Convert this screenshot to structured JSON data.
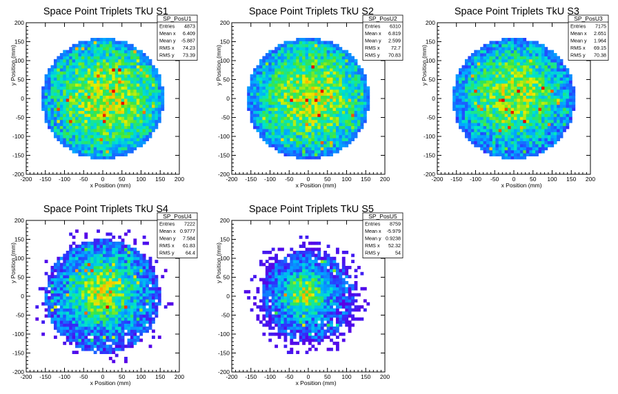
{
  "chart_data": [
    {
      "type": "heatmap",
      "title": "Space Point Triplets TkU S1",
      "xlabel": "x Position (mm)",
      "ylabel": "y Position (mm)",
      "xlim": [
        -200,
        200
      ],
      "ylim": [
        -200,
        200
      ],
      "x_ticks": [
        -200,
        -150,
        -100,
        -50,
        0,
        50,
        100,
        150,
        200
      ],
      "y_ticks": [
        -200,
        -150,
        -100,
        -50,
        0,
        50,
        100,
        150,
        200
      ],
      "stats": {
        "name": "SP_PosU1",
        "rows": [
          {
            "label": "Entries",
            "value": "4873"
          },
          {
            "label": "Mean x",
            "value": "6.409"
          },
          {
            "label": "Mean y",
            "value": "-5.887"
          },
          {
            "label": "RMS x",
            "value": "74.23"
          },
          {
            "label": "RMS y",
            "value": "73.39"
          }
        ]
      },
      "distribution": {
        "radius": 160,
        "peak": [
          10,
          0
        ],
        "spread": 120,
        "halo": 0
      }
    },
    {
      "type": "heatmap",
      "title": "Space Point Triplets TkU S2",
      "xlabel": "x Position (mm)",
      "ylabel": "y Position (mm)",
      "xlim": [
        -200,
        200
      ],
      "ylim": [
        -200,
        200
      ],
      "x_ticks": [
        -200,
        -150,
        -100,
        -50,
        0,
        50,
        100,
        150,
        200
      ],
      "y_ticks": [
        -200,
        -150,
        -100,
        -50,
        0,
        50,
        100,
        150,
        200
      ],
      "stats": {
        "name": "SP_PosU2",
        "rows": [
          {
            "label": "Entries",
            "value": "6310"
          },
          {
            "label": "Mean x",
            "value": "6.819"
          },
          {
            "label": "Mean y",
            "value": "2.599"
          },
          {
            "label": "RMS x",
            "value": "72.7"
          },
          {
            "label": "RMS y",
            "value": "70.83"
          }
        ]
      },
      "distribution": {
        "radius": 160,
        "peak": [
          10,
          5
        ],
        "spread": 115,
        "halo": 0
      }
    },
    {
      "type": "heatmap",
      "title": "Space Point Triplets TkU S3",
      "xlabel": "x Position (mm)",
      "ylabel": "y Position (mm)",
      "xlim": [
        -200,
        200
      ],
      "ylim": [
        -200,
        200
      ],
      "x_ticks": [
        -200,
        -150,
        -100,
        -50,
        0,
        50,
        100,
        150,
        200
      ],
      "y_ticks": [
        -200,
        -150,
        -100,
        -50,
        0,
        50,
        100,
        150,
        200
      ],
      "stats": {
        "name": "SP_PosU3",
        "rows": [
          {
            "label": "Entries",
            "value": "7175"
          },
          {
            "label": "Mean x",
            "value": "2.651"
          },
          {
            "label": "Mean y",
            "value": "1.964"
          },
          {
            "label": "RMS x",
            "value": "69.15"
          },
          {
            "label": "RMS y",
            "value": "70.38"
          }
        ]
      },
      "distribution": {
        "radius": 160,
        "peak": [
          0,
          10
        ],
        "spread": 100,
        "halo": 0
      }
    },
    {
      "type": "heatmap",
      "title": "Space Point Triplets TkU S4",
      "xlabel": "x Position (mm)",
      "ylabel": "y Position (mm)",
      "xlim": [
        -200,
        200
      ],
      "ylim": [
        -200,
        200
      ],
      "x_ticks": [
        -200,
        -150,
        -100,
        -50,
        0,
        50,
        100,
        150,
        200
      ],
      "y_ticks": [
        -200,
        -150,
        -100,
        -50,
        0,
        50,
        100,
        150,
        200
      ],
      "stats": {
        "name": "SP_PosU4",
        "rows": [
          {
            "label": "Entries",
            "value": "7222"
          },
          {
            "label": "Mean x",
            "value": "0.9777"
          },
          {
            "label": "Mean y",
            "value": "7.584"
          },
          {
            "label": "RMS x",
            "value": "61.83"
          },
          {
            "label": "RMS y",
            "value": "64.4"
          }
        ]
      },
      "distribution": {
        "radius": 150,
        "peak": [
          0,
          15
        ],
        "spread": 70,
        "halo": 0.3
      }
    },
    {
      "type": "heatmap",
      "title": "Space Point Triplets TkU S5",
      "xlabel": "x Position (mm)",
      "ylabel": "y Position (mm)",
      "xlim": [
        -200,
        200
      ],
      "ylim": [
        -200,
        200
      ],
      "x_ticks": [
        -200,
        -150,
        -100,
        -50,
        0,
        50,
        100,
        150,
        200
      ],
      "y_ticks": [
        -200,
        -150,
        -100,
        -50,
        0,
        50,
        100,
        150,
        200
      ],
      "stats": {
        "name": "SP_PosU5",
        "rows": [
          {
            "label": "Entries",
            "value": "8759"
          },
          {
            "label": "Mean x",
            "value": "-5.979"
          },
          {
            "label": "Mean y",
            "value": "0.9238"
          },
          {
            "label": "RMS x",
            "value": "52.32"
          },
          {
            "label": "RMS y",
            "value": "54"
          }
        ]
      },
      "distribution": {
        "radius": 120,
        "peak": [
          -10,
          5
        ],
        "spread": 45,
        "halo": 1
      }
    }
  ]
}
